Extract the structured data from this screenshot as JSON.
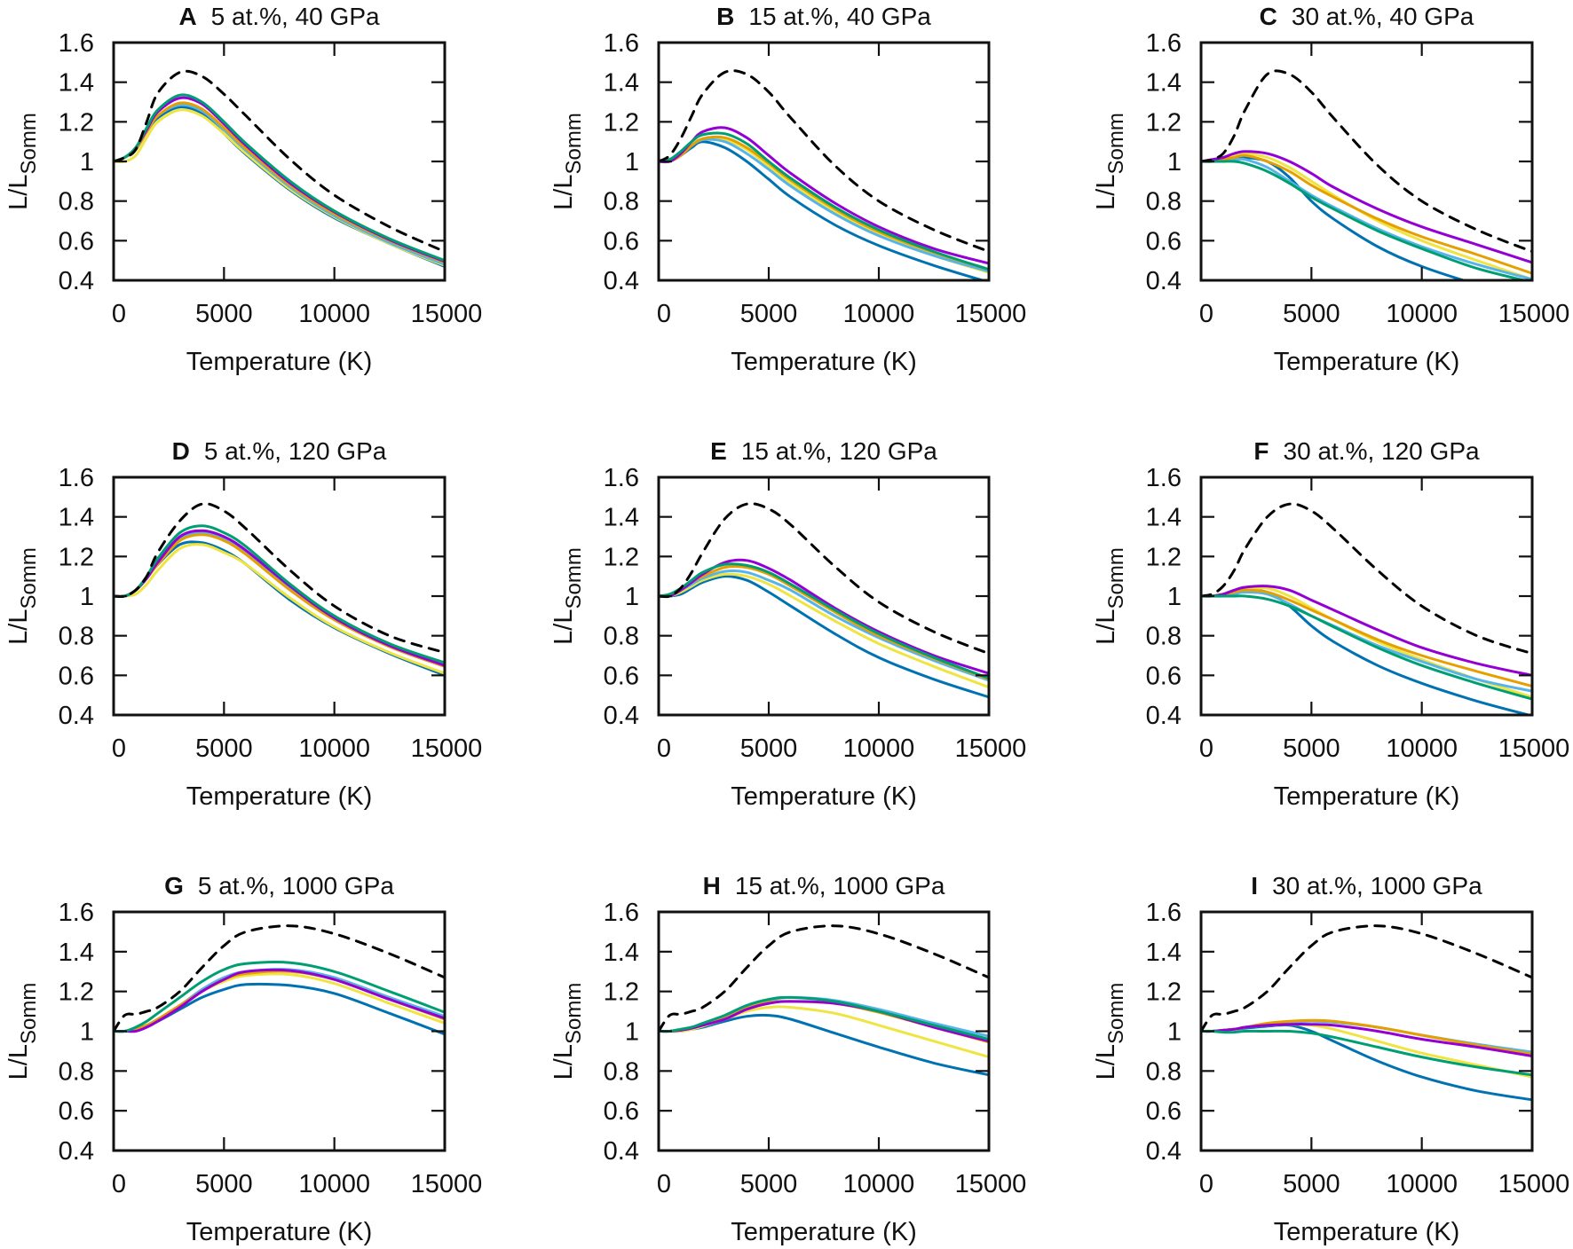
{
  "chart_data": {
    "type": "line",
    "layout": "3x3 grid",
    "xlabel": "Temperature (K)",
    "ylabel_main": "L/L",
    "ylabel_sub": "Somm",
    "xlim": [
      0,
      15000
    ],
    "ylim": [
      0.4,
      1.6
    ],
    "xticks": [
      0,
      5000,
      10000,
      15000
    ],
    "xtick_labels": [
      "0",
      "5000",
      "10000",
      "15000"
    ],
    "yticks": [
      0.4,
      0.6,
      0.8,
      1.0,
      1.2,
      1.4,
      1.6
    ],
    "ytick_labels": [
      "0.4",
      "0.6",
      "0.8",
      "1",
      "1.2",
      "1.4",
      "1.6"
    ],
    "grid": false,
    "legend": "none",
    "x": [
      0,
      500,
      1000,
      1500,
      2000,
      3000,
      4000,
      5000,
      6000,
      8000,
      10000,
      12500,
      15000
    ],
    "series_styles": [
      {
        "id": "dashed-reference",
        "color": "#000000",
        "dash": true
      },
      {
        "id": "purple",
        "color": "#9400d3",
        "dash": false
      },
      {
        "id": "green",
        "color": "#009e73",
        "dash": false
      },
      {
        "id": "orange",
        "color": "#e69f00",
        "dash": false
      },
      {
        "id": "lightblue",
        "color": "#56b4e9",
        "dash": false
      },
      {
        "id": "yellow",
        "color": "#f0e442",
        "dash": false
      },
      {
        "id": "blue",
        "color": "#0072b2",
        "dash": false
      }
    ],
    "panels": [
      {
        "letter": "A",
        "title": "5 at.%, 40 GPa",
        "series": {
          "dashed-reference": [
            1.0,
            1.02,
            1.06,
            1.2,
            1.345,
            1.45,
            1.43,
            1.34,
            1.23,
            1.01,
            0.83,
            0.67,
            0.545
          ],
          "purple": [
            1,
            1.02,
            1.07,
            1.16,
            1.25,
            1.32,
            1.29,
            1.19,
            1.08,
            0.89,
            0.745,
            0.605,
            0.495
          ],
          "green": [
            1,
            1.02,
            1.07,
            1.17,
            1.26,
            1.335,
            1.3,
            1.2,
            1.09,
            0.9,
            0.75,
            0.61,
            0.5
          ],
          "orange": [
            1,
            1.02,
            1.06,
            1.15,
            1.23,
            1.295,
            1.265,
            1.17,
            1.065,
            0.88,
            0.735,
            0.6,
            0.49
          ],
          "lightblue": [
            1,
            1.02,
            1.06,
            1.15,
            1.23,
            1.285,
            1.255,
            1.16,
            1.055,
            0.87,
            0.725,
            0.59,
            0.48
          ],
          "yellow": [
            1,
            1.0,
            1.03,
            1.12,
            1.2,
            1.26,
            1.23,
            1.14,
            1.04,
            0.86,
            0.72,
            0.585,
            0.475
          ],
          "blue": [
            1,
            1.02,
            1.06,
            1.15,
            1.22,
            1.275,
            1.24,
            1.14,
            1.035,
            0.855,
            0.715,
            0.585,
            0.47
          ]
        }
      },
      {
        "letter": "B",
        "title": "15 at.%, 40 GPa",
        "series": {
          "dashed-reference": [
            1.0,
            1.03,
            1.115,
            1.23,
            1.34,
            1.45,
            1.44,
            1.35,
            1.22,
            0.98,
            0.8,
            0.655,
            0.545
          ],
          "purple": [
            1,
            1.0,
            1.04,
            1.1,
            1.15,
            1.17,
            1.12,
            1.03,
            0.94,
            0.79,
            0.67,
            0.56,
            0.485
          ],
          "green": [
            1,
            1.01,
            1.05,
            1.1,
            1.135,
            1.14,
            1.09,
            1.0,
            0.915,
            0.77,
            0.655,
            0.545,
            0.455
          ],
          "orange": [
            1,
            1.0,
            1.03,
            1.08,
            1.115,
            1.12,
            1.07,
            0.99,
            0.905,
            0.76,
            0.645,
            0.54,
            0.455
          ],
          "lightblue": [
            1,
            1.0,
            1.03,
            1.08,
            1.11,
            1.1,
            1.04,
            0.96,
            0.875,
            0.735,
            0.625,
            0.525,
            0.445
          ],
          "yellow": [
            1,
            1.0,
            1.03,
            1.08,
            1.11,
            1.11,
            1.06,
            0.975,
            0.89,
            0.745,
            0.635,
            0.525,
            0.44
          ],
          "blue": [
            1,
            1.0,
            1.03,
            1.07,
            1.1,
            1.07,
            1.0,
            0.91,
            0.82,
            0.68,
            0.575,
            0.475,
            0.39
          ]
        }
      },
      {
        "letter": "C",
        "title": "30 at.%, 40 GPa",
        "series": {
          "dashed-reference": [
            1.0,
            1.01,
            1.04,
            1.13,
            1.26,
            1.44,
            1.44,
            1.35,
            1.22,
            0.98,
            0.8,
            0.655,
            0.545
          ],
          "purple": [
            1,
            1.01,
            1.02,
            1.04,
            1.05,
            1.04,
            1.0,
            0.94,
            0.87,
            0.76,
            0.67,
            0.58,
            0.49
          ],
          "green": [
            1,
            1.0,
            1.0,
            1.0,
            0.99,
            0.95,
            0.89,
            0.82,
            0.76,
            0.65,
            0.56,
            0.46,
            0.39
          ],
          "orange": [
            1,
            1.0,
            1.01,
            1.02,
            1.03,
            1.0,
            0.95,
            0.88,
            0.82,
            0.71,
            0.62,
            0.53,
            0.435
          ],
          "lightblue": [
            1,
            1.0,
            1.01,
            1.01,
            1.01,
            0.97,
            0.9,
            0.83,
            0.77,
            0.66,
            0.57,
            0.48,
            0.405
          ],
          "yellow": [
            1,
            1.0,
            1.01,
            1.03,
            1.04,
            1.02,
            0.97,
            0.9,
            0.83,
            0.7,
            0.6,
            0.5,
            0.405
          ],
          "blue": [
            1,
            1.0,
            1.01,
            1.02,
            1.02,
            1.0,
            0.92,
            0.8,
            0.71,
            0.57,
            0.47,
            0.38,
            0.31
          ]
        }
      },
      {
        "letter": "D",
        "title": "5 at.%, 120 GPa",
        "series": {
          "dashed-reference": [
            1.0,
            1.0,
            1.03,
            1.1,
            1.22,
            1.38,
            1.465,
            1.43,
            1.34,
            1.13,
            0.95,
            0.8,
            0.715
          ],
          "purple": [
            1,
            1.0,
            1.03,
            1.09,
            1.17,
            1.3,
            1.33,
            1.3,
            1.23,
            1.05,
            0.89,
            0.75,
            0.65
          ],
          "green": [
            1,
            1.0,
            1.03,
            1.1,
            1.19,
            1.32,
            1.355,
            1.32,
            1.25,
            1.06,
            0.9,
            0.76,
            0.664
          ],
          "orange": [
            1,
            1.0,
            1.03,
            1.09,
            1.16,
            1.28,
            1.31,
            1.28,
            1.21,
            1.03,
            0.88,
            0.745,
            0.645
          ],
          "lightblue": [
            1,
            1.0,
            1.03,
            1.09,
            1.17,
            1.29,
            1.32,
            1.29,
            1.22,
            1.04,
            0.885,
            0.745,
            0.645
          ],
          "yellow": [
            1,
            1.0,
            1.01,
            1.06,
            1.13,
            1.24,
            1.26,
            1.22,
            1.16,
            0.99,
            0.845,
            0.715,
            0.61
          ],
          "blue": [
            1,
            1.0,
            1.03,
            1.09,
            1.16,
            1.26,
            1.27,
            1.23,
            1.16,
            0.98,
            0.84,
            0.71,
            0.6
          ]
        }
      },
      {
        "letter": "E",
        "title": "15 at.%, 120 GPa",
        "series": {
          "dashed-reference": [
            1.0,
            1.0,
            1.04,
            1.12,
            1.22,
            1.39,
            1.465,
            1.44,
            1.36,
            1.15,
            0.97,
            0.82,
            0.71
          ],
          "purple": [
            1,
            1.0,
            1.03,
            1.07,
            1.11,
            1.17,
            1.18,
            1.14,
            1.08,
            0.94,
            0.82,
            0.7,
            0.61
          ],
          "green": [
            1,
            1.01,
            1.04,
            1.08,
            1.12,
            1.16,
            1.155,
            1.12,
            1.06,
            0.93,
            0.81,
            0.69,
            0.585
          ],
          "orange": [
            1,
            1.0,
            1.03,
            1.07,
            1.1,
            1.145,
            1.145,
            1.11,
            1.05,
            0.92,
            0.8,
            0.685,
            0.58
          ],
          "lightblue": [
            1,
            1.0,
            1.03,
            1.06,
            1.09,
            1.125,
            1.12,
            1.08,
            1.03,
            0.9,
            0.79,
            0.675,
            0.575
          ],
          "yellow": [
            1,
            1.0,
            1.02,
            1.05,
            1.08,
            1.11,
            1.1,
            1.06,
            1.0,
            0.875,
            0.76,
            0.645,
            0.54
          ],
          "blue": [
            1,
            1.0,
            1.01,
            1.04,
            1.07,
            1.1,
            1.08,
            1.02,
            0.95,
            0.81,
            0.69,
            0.58,
            0.49
          ]
        }
      },
      {
        "letter": "F",
        "title": "30 at.%, 120 GPa",
        "series": {
          "dashed-reference": [
            1.0,
            1.01,
            1.05,
            1.13,
            1.24,
            1.4,
            1.465,
            1.43,
            1.34,
            1.13,
            0.95,
            0.8,
            0.71
          ],
          "purple": [
            1,
            1.0,
            1.01,
            1.03,
            1.045,
            1.05,
            1.03,
            0.98,
            0.93,
            0.83,
            0.74,
            0.66,
            0.6
          ],
          "green": [
            1,
            1.0,
            1.0,
            1.0,
            1.0,
            0.985,
            0.95,
            0.9,
            0.845,
            0.74,
            0.65,
            0.56,
            0.48
          ],
          "orange": [
            1,
            1.0,
            1.01,
            1.02,
            1.03,
            1.02,
            0.98,
            0.93,
            0.88,
            0.78,
            0.7,
            0.62,
            0.545
          ],
          "lightblue": [
            1,
            1.0,
            1.0,
            1.01,
            1.02,
            1.01,
            0.96,
            0.9,
            0.85,
            0.75,
            0.67,
            0.58,
            0.52
          ],
          "yellow": [
            1,
            1.0,
            1.01,
            1.03,
            1.035,
            1.04,
            1.0,
            0.94,
            0.88,
            0.77,
            0.68,
            0.58,
            0.49
          ],
          "blue": [
            1,
            1.0,
            1.01,
            1.02,
            1.03,
            1.02,
            0.95,
            0.85,
            0.77,
            0.65,
            0.56,
            0.47,
            0.395
          ]
        }
      },
      {
        "letter": "G",
        "title": "5 at.%, 1000 GPa",
        "series": {
          "dashed-reference": [
            1.0,
            1.08,
            1.085,
            1.1,
            1.12,
            1.2,
            1.32,
            1.43,
            1.5,
            1.53,
            1.49,
            1.39,
            1.27
          ],
          "purple": [
            1,
            1.0,
            1.0,
            1.02,
            1.05,
            1.12,
            1.2,
            1.26,
            1.3,
            1.305,
            1.26,
            1.16,
            1.065
          ],
          "green": [
            1,
            1.0,
            1.02,
            1.05,
            1.09,
            1.17,
            1.25,
            1.31,
            1.34,
            1.345,
            1.3,
            1.2,
            1.095
          ],
          "orange": [
            1,
            1.0,
            1.01,
            1.03,
            1.06,
            1.13,
            1.2,
            1.26,
            1.29,
            1.3,
            1.26,
            1.16,
            1.06
          ],
          "lightblue": [
            1,
            1.0,
            1.01,
            1.03,
            1.06,
            1.13,
            1.21,
            1.27,
            1.3,
            1.31,
            1.27,
            1.17,
            1.075
          ],
          "yellow": [
            1,
            1.0,
            1.01,
            1.03,
            1.06,
            1.13,
            1.2,
            1.25,
            1.28,
            1.285,
            1.24,
            1.14,
            1.04
          ],
          "blue": [
            1,
            1.0,
            1.01,
            1.03,
            1.05,
            1.11,
            1.17,
            1.21,
            1.235,
            1.23,
            1.19,
            1.09,
            0.985
          ]
        }
      },
      {
        "letter": "H",
        "title": "15 at.%, 1000 GPa",
        "series": {
          "dashed-reference": [
            1.0,
            1.08,
            1.085,
            1.1,
            1.12,
            1.2,
            1.32,
            1.43,
            1.5,
            1.53,
            1.49,
            1.39,
            1.27
          ],
          "purple": [
            1,
            1.0,
            1.005,
            1.015,
            1.03,
            1.06,
            1.11,
            1.14,
            1.15,
            1.14,
            1.1,
            1.02,
            0.95
          ],
          "green": [
            1,
            1.0,
            1.01,
            1.02,
            1.04,
            1.08,
            1.13,
            1.16,
            1.17,
            1.15,
            1.1,
            1.03,
            0.96
          ],
          "orange": [
            1,
            1.0,
            1.005,
            1.015,
            1.03,
            1.065,
            1.115,
            1.145,
            1.15,
            1.14,
            1.095,
            1.02,
            0.945
          ],
          "lightblue": [
            1,
            1.0,
            1.01,
            1.02,
            1.035,
            1.075,
            1.125,
            1.155,
            1.17,
            1.155,
            1.11,
            1.04,
            0.975
          ],
          "yellow": [
            1,
            1.0,
            1.0,
            1.01,
            1.025,
            1.06,
            1.1,
            1.12,
            1.12,
            1.09,
            1.03,
            0.95,
            0.87
          ],
          "blue": [
            1,
            1.0,
            1.0,
            1.01,
            1.02,
            1.05,
            1.075,
            1.08,
            1.06,
            0.99,
            0.92,
            0.84,
            0.78
          ]
        }
      },
      {
        "letter": "I",
        "title": "30 at.%, 1000 GPa",
        "series": {
          "dashed-reference": [
            1.0,
            1.08,
            1.085,
            1.1,
            1.12,
            1.2,
            1.32,
            1.43,
            1.5,
            1.53,
            1.49,
            1.39,
            1.27
          ],
          "purple": [
            1,
            1.0,
            1.005,
            1.01,
            1.02,
            1.03,
            1.035,
            1.035,
            1.03,
            1.0,
            0.96,
            0.92,
            0.875
          ],
          "green": [
            1,
            1.0,
            0.995,
            0.995,
            1.0,
            1.0,
            1.0,
            0.99,
            0.97,
            0.92,
            0.87,
            0.82,
            0.78
          ],
          "orange": [
            1,
            1.0,
            1.005,
            1.01,
            1.02,
            1.04,
            1.05,
            1.055,
            1.05,
            1.02,
            0.98,
            0.93,
            0.885
          ],
          "lightblue": [
            1,
            1.0,
            1.005,
            1.01,
            1.02,
            1.035,
            1.045,
            1.05,
            1.045,
            1.02,
            0.98,
            0.935,
            0.895
          ],
          "yellow": [
            1,
            1.0,
            1.005,
            1.01,
            1.02,
            1.03,
            1.035,
            1.03,
            1.01,
            0.95,
            0.89,
            0.83,
            0.77
          ],
          "blue": [
            1,
            1.0,
            1.005,
            1.01,
            1.015,
            1.025,
            1.03,
            1.0,
            0.95,
            0.85,
            0.77,
            0.7,
            0.655
          ]
        }
      }
    ]
  }
}
